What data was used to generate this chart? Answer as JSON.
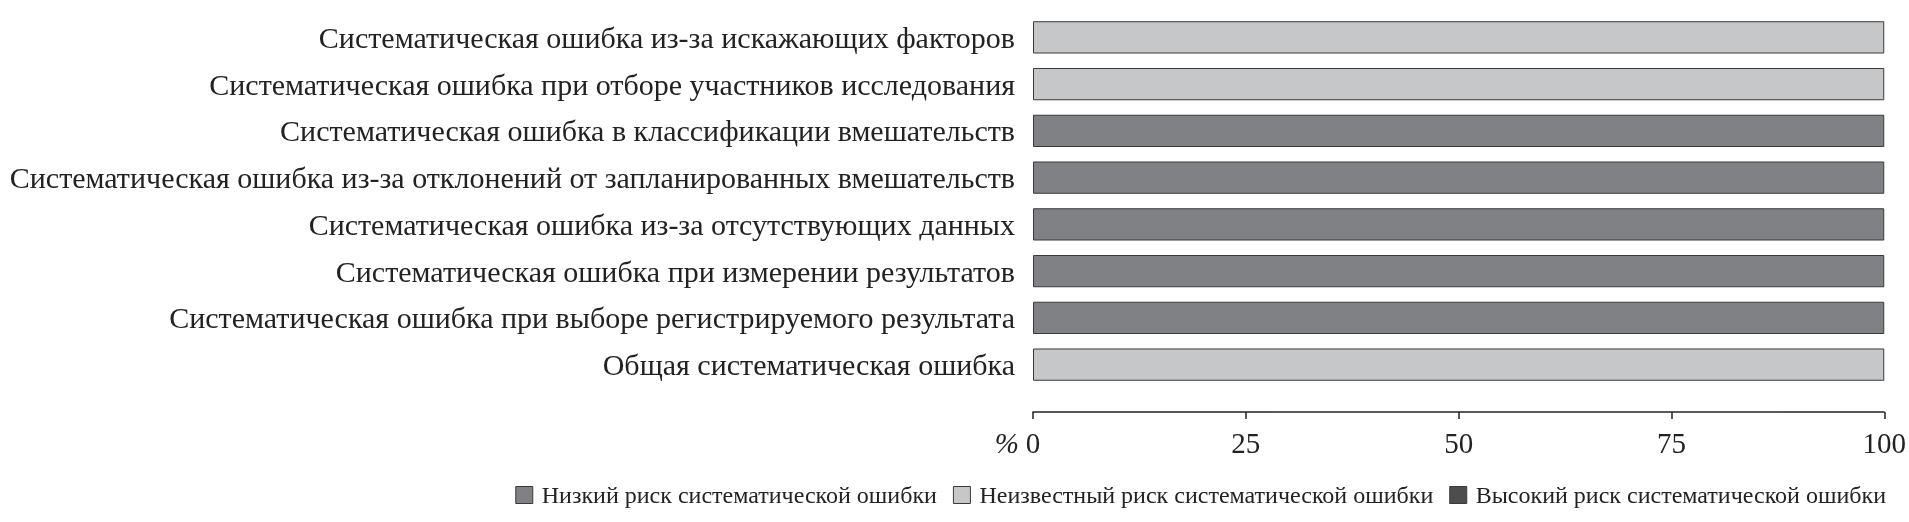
{
  "chart_data": {
    "type": "bar",
    "orientation": "horizontal",
    "stacked": true,
    "xlabel": "%",
    "categories": [
      "Систематическая ошибка из-за искажающих факторов",
      "Систематическая ошибка при отборе участников исследования",
      "Систематическая ошибка в классификации вмешательств",
      "Систематическая ошибка из-за отклонений от запланированных вмешательств",
      "Систематическая ошибка из-за отсутствующих данных",
      "Систематическая ошибка при измерении результатов",
      "Систематическая ошибка при выборе регистрируемого результата",
      "Общая систематическая ошибка"
    ],
    "series": [
      {
        "name": "Низкий риск систематической ошибки",
        "color": "#808184",
        "values": [
          0,
          0,
          100,
          100,
          100,
          100,
          100,
          0
        ]
      },
      {
        "name": "Неизвестный риск систематической ошибки",
        "color": "#c6c7c9",
        "values": [
          100,
          100,
          0,
          0,
          0,
          0,
          0,
          100
        ]
      },
      {
        "name": "Высокий риск систематической ошибки",
        "color": "#4d4d4f",
        "values": [
          0,
          0,
          0,
          0,
          0,
          0,
          0,
          0
        ]
      }
    ],
    "xlim": [
      0,
      100
    ],
    "xticks": [
      0,
      25,
      50,
      75,
      100
    ],
    "legend": "bottom left"
  }
}
